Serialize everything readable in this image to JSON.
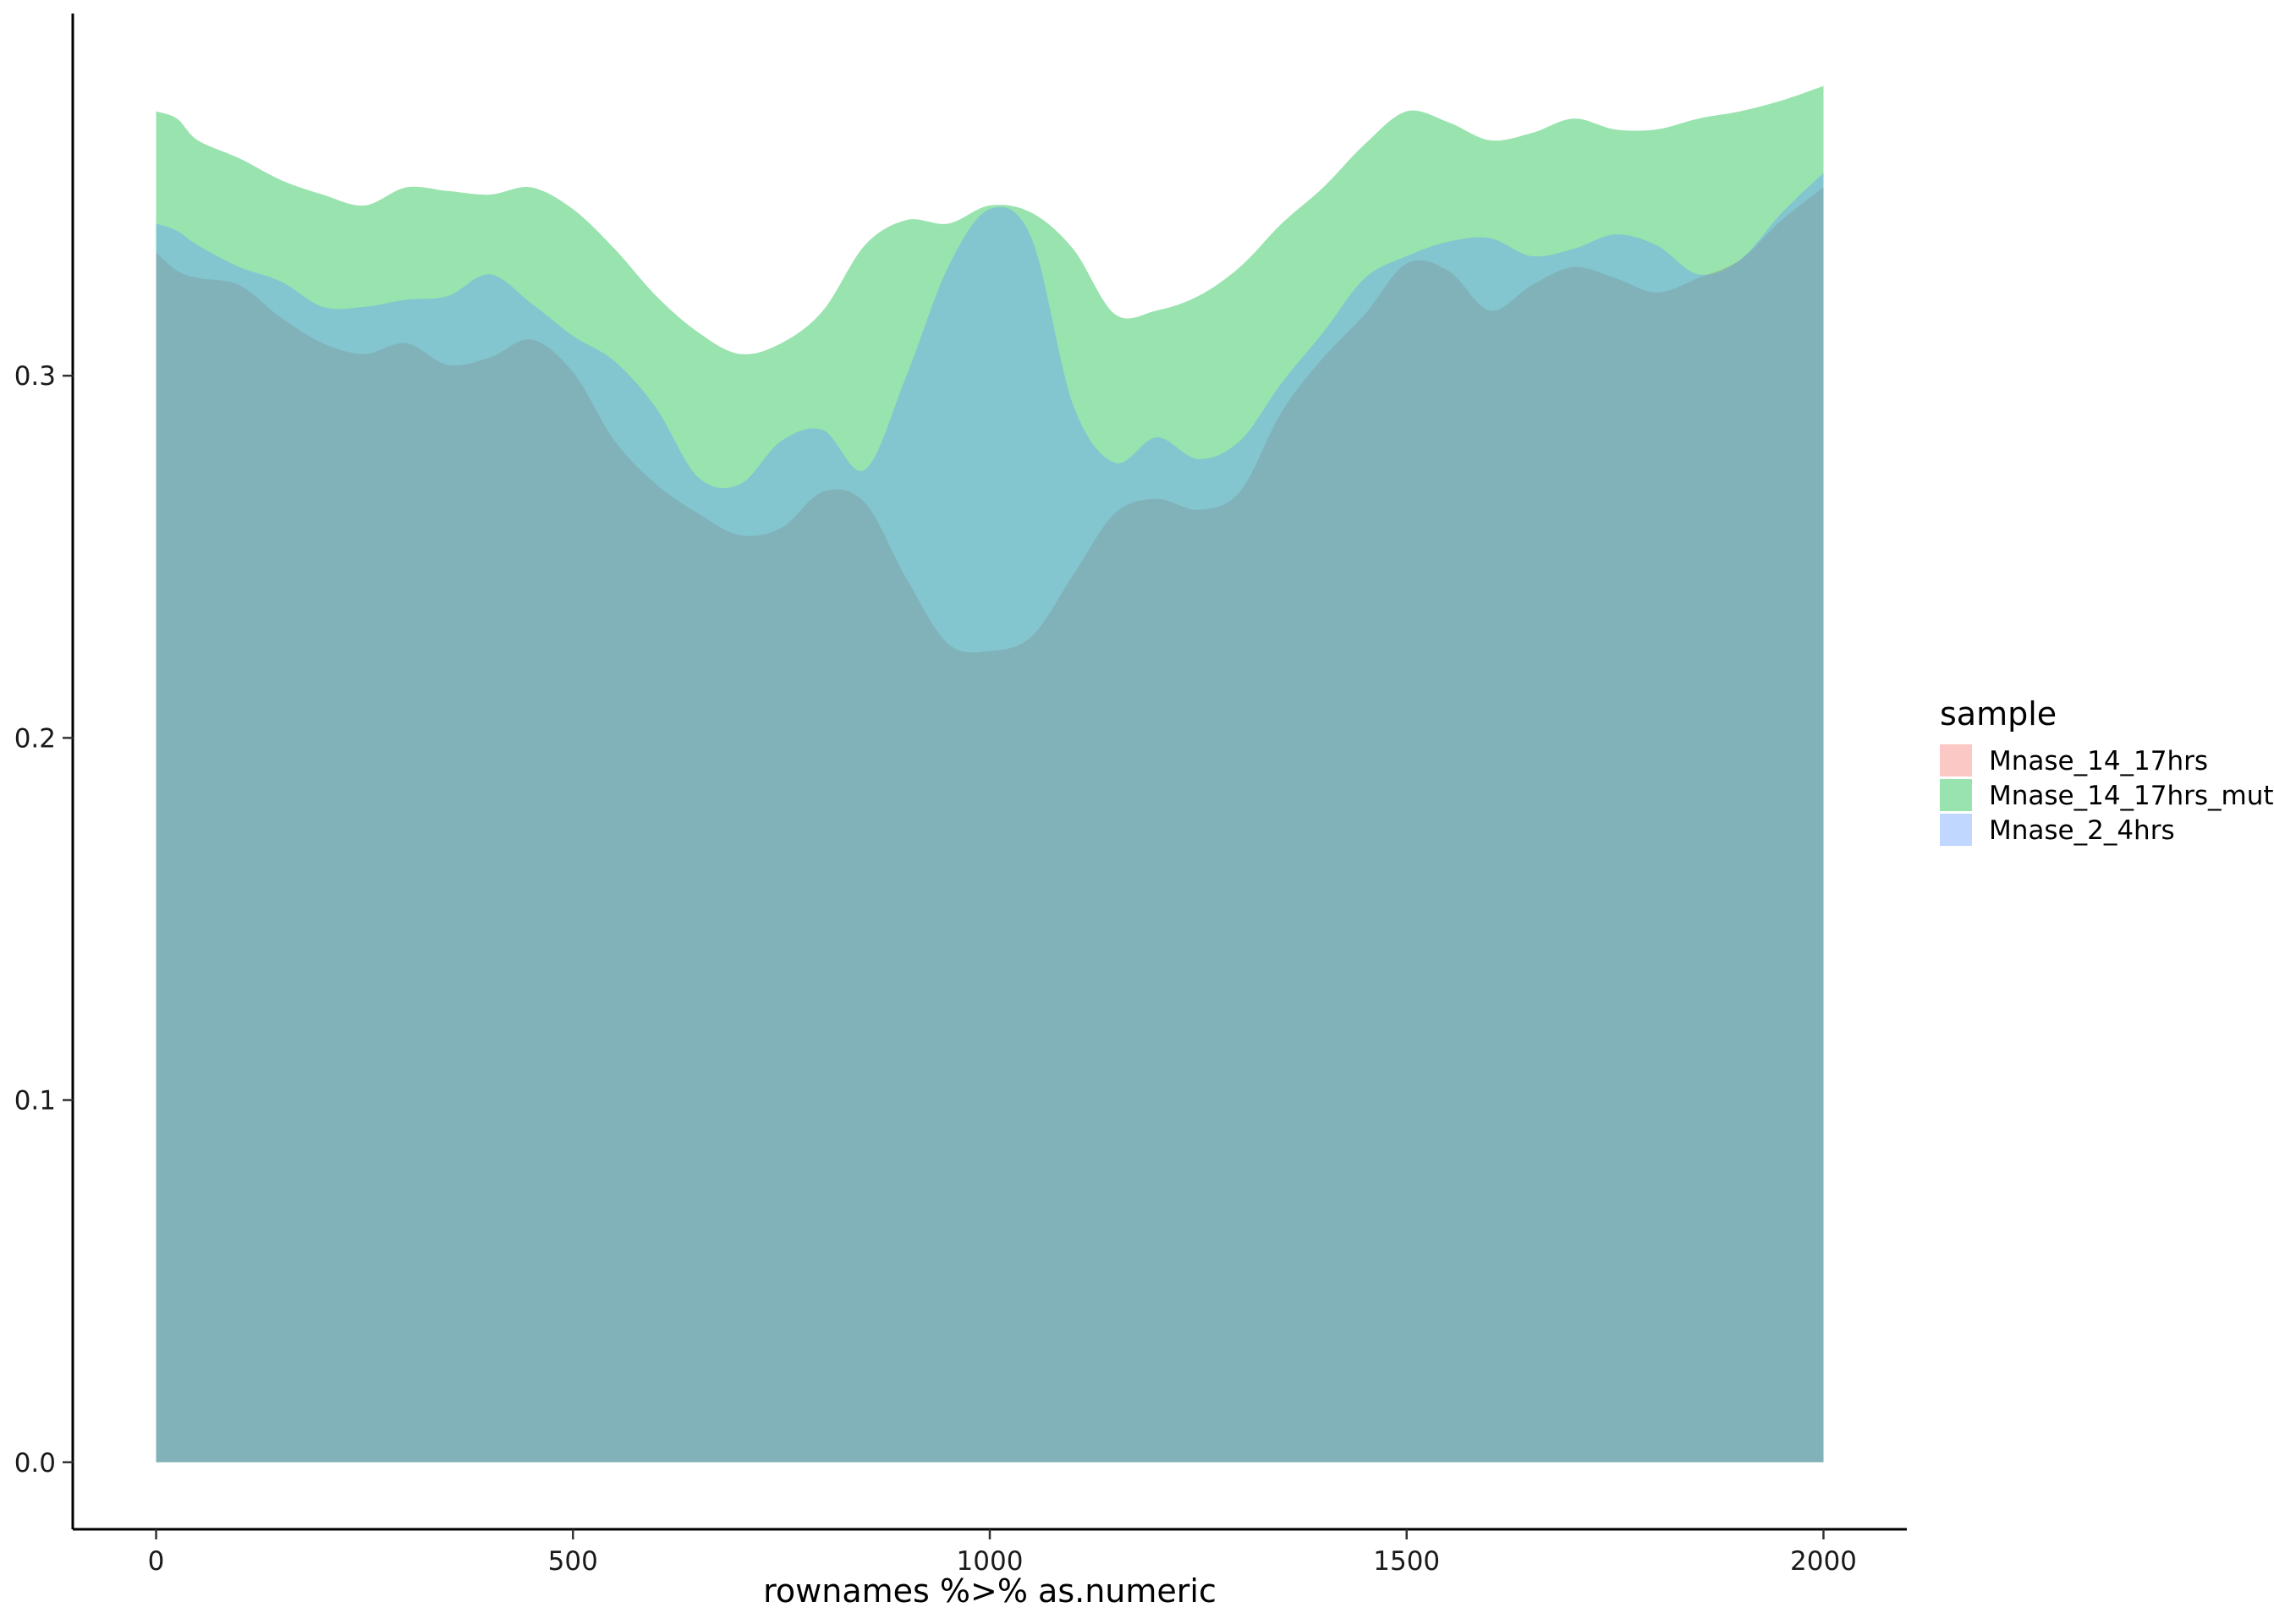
{
  "chart_data": {
    "type": "area",
    "title": "",
    "xlabel": "rownames %>% as.numeric",
    "ylabel": "",
    "xlim": [
      -100,
      2100
    ],
    "ylim": [
      -0.0185,
      0.4
    ],
    "x_ticks": [
      0,
      500,
      1000,
      1500,
      2000
    ],
    "y_ticks": [
      0.0,
      0.1,
      0.2,
      0.3
    ],
    "y_tick_labels": [
      "0.0",
      "0.1",
      "0.2",
      "0.3"
    ],
    "grid": false,
    "fill_opacity": 0.4,
    "legend": {
      "title": "sample",
      "position": "right",
      "entries": [
        "Mnase_14_17hrs",
        "Mnase_14_17hrs_mut",
        "Mnase_2_4hrs"
      ]
    },
    "series": [
      {
        "name": "Mnase_14_17hrs",
        "color": "#F8766D",
        "x": [
          0,
          25,
          50,
          100,
          150,
          200,
          250,
          300,
          350,
          400,
          450,
          500,
          550,
          600,
          650,
          700,
          750,
          800,
          850,
          900,
          950,
          1000,
          1050,
          1100,
          1150,
          1200,
          1250,
          1300,
          1350,
          1400,
          1450,
          1500,
          1550,
          1600,
          1650,
          1700,
          1750,
          1800,
          1850,
          1900,
          1950,
          2000
        ],
        "values": [
          0.334,
          0.329,
          0.327,
          0.325,
          0.316,
          0.309,
          0.306,
          0.309,
          0.303,
          0.305,
          0.31,
          0.301,
          0.282,
          0.27,
          0.262,
          0.256,
          0.258,
          0.268,
          0.265,
          0.244,
          0.226,
          0.224,
          0.228,
          0.245,
          0.262,
          0.266,
          0.263,
          0.268,
          0.29,
          0.305,
          0.317,
          0.331,
          0.329,
          0.318,
          0.325,
          0.33,
          0.327,
          0.323,
          0.327,
          0.332,
          0.343,
          0.352
        ]
      },
      {
        "name": "Mnase_14_17hrs_mut",
        "color": "#00BA38",
        "x": [
          0,
          25,
          50,
          100,
          150,
          200,
          250,
          300,
          350,
          400,
          450,
          500,
          550,
          600,
          650,
          700,
          750,
          800,
          850,
          900,
          950,
          1000,
          1050,
          1100,
          1150,
          1200,
          1250,
          1300,
          1350,
          1400,
          1450,
          1500,
          1550,
          1600,
          1650,
          1700,
          1750,
          1800,
          1850,
          1900,
          1950,
          2000
        ],
        "values": [
          0.373,
          0.371,
          0.365,
          0.36,
          0.354,
          0.35,
          0.347,
          0.352,
          0.351,
          0.35,
          0.352,
          0.346,
          0.335,
          0.322,
          0.312,
          0.306,
          0.309,
          0.318,
          0.336,
          0.343,
          0.342,
          0.347,
          0.345,
          0.335,
          0.317,
          0.318,
          0.322,
          0.33,
          0.342,
          0.352,
          0.364,
          0.373,
          0.37,
          0.365,
          0.367,
          0.371,
          0.368,
          0.368,
          0.371,
          0.373,
          0.376,
          0.38
        ]
      },
      {
        "name": "Mnase_2_4hrs",
        "color": "#619CFF",
        "x": [
          0,
          25,
          50,
          100,
          150,
          200,
          250,
          300,
          350,
          400,
          450,
          500,
          550,
          600,
          650,
          700,
          750,
          800,
          850,
          900,
          950,
          1000,
          1050,
          1100,
          1150,
          1200,
          1250,
          1300,
          1350,
          1400,
          1450,
          1500,
          1550,
          1600,
          1650,
          1700,
          1750,
          1800,
          1850,
          1900,
          1950,
          2000
        ],
        "values": [
          0.342,
          0.34,
          0.336,
          0.33,
          0.326,
          0.319,
          0.319,
          0.321,
          0.322,
          0.328,
          0.32,
          0.311,
          0.304,
          0.291,
          0.272,
          0.27,
          0.282,
          0.285,
          0.274,
          0.3,
          0.33,
          0.346,
          0.338,
          0.292,
          0.276,
          0.283,
          0.277,
          0.282,
          0.298,
          0.312,
          0.327,
          0.333,
          0.337,
          0.338,
          0.333,
          0.335,
          0.339,
          0.336,
          0.328,
          0.332,
          0.345,
          0.356
        ]
      }
    ]
  }
}
